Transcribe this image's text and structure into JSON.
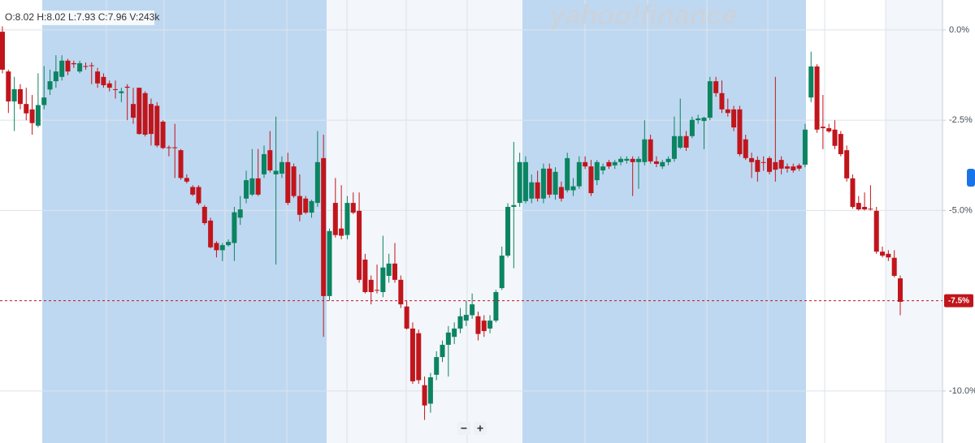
{
  "chart_data": {
    "type": "candlestick",
    "legend_text": "O:8.02  H:8.02  L:7.93  C:7.96  V:243k",
    "watermark": "yahoo!finance",
    "zoom_out": "−",
    "zoom_in": "+",
    "up_color": "#0b8461",
    "down_color": "#c1151c",
    "ylim": [
      -11.44,
      0.83
    ],
    "yticks": [
      {
        "value": 0,
        "label": "0.0%"
      },
      {
        "value": -2.5,
        "label": "-2.5%"
      },
      {
        "value": -5,
        "label": "-5.0%"
      },
      {
        "value": -10,
        "label": "-10.0%"
      }
    ],
    "price_label": {
      "value": -7.5,
      "label": "-7.5%"
    },
    "grid": true,
    "ohlc": [
      [
        -0.05,
        0.1,
        -1.2,
        -1.1
      ],
      [
        -1.15,
        -1.1,
        -2.3,
        -1.98
      ],
      [
        -1.98,
        -1.3,
        -2.8,
        -1.64
      ],
      [
        -1.64,
        -1.5,
        -2.2,
        -2.05
      ],
      [
        -2.05,
        -1.6,
        -2.5,
        -2.31
      ],
      [
        -2.2,
        -1.8,
        -2.9,
        -2.58
      ],
      [
        -2.65,
        -1.2,
        -2.7,
        -2.08
      ],
      [
        -2.08,
        -1.0,
        -2.2,
        -1.87
      ],
      [
        -1.65,
        -1.1,
        -1.8,
        -1.42
      ],
      [
        -1.42,
        -0.7,
        -1.6,
        -1.15
      ],
      [
        -1.3,
        -0.7,
        -1.4,
        -0.85
      ],
      [
        -0.85,
        -0.8,
        -1.25,
        -1.15
      ],
      [
        -0.92,
        -0.85,
        -1.05,
        -0.95
      ],
      [
        -1.15,
        -0.85,
        -1.2,
        -0.92
      ],
      [
        -1.0,
        -0.9,
        -1.1,
        -1.02
      ],
      [
        -0.98,
        -0.9,
        -1.5,
        -1.0
      ],
      [
        -1.15,
        -1.05,
        -1.6,
        -1.48
      ],
      [
        -1.3,
        -1.2,
        -1.6,
        -1.53
      ],
      [
        -1.48,
        -1.4,
        -1.7,
        -1.6
      ],
      [
        -1.64,
        -1.4,
        -1.9,
        -1.66
      ],
      [
        -1.75,
        -1.6,
        -2.0,
        -1.7
      ],
      [
        -1.57,
        -1.5,
        -2.5,
        -1.6
      ],
      [
        -2.05,
        -1.6,
        -2.6,
        -2.43
      ],
      [
        -1.6,
        -1.6,
        -2.9,
        -2.88
      ],
      [
        -1.75,
        -1.7,
        -2.95,
        -2.9
      ],
      [
        -2.05,
        -1.9,
        -3.2,
        -2.88
      ],
      [
        -2.1,
        -2.0,
        -3.25,
        -3.2
      ],
      [
        -2.54,
        -2.5,
        -3.3,
        -3.27
      ],
      [
        -3.25,
        -3.2,
        -3.5,
        -3.27
      ],
      [
        -3.25,
        -2.6,
        -4.1,
        -3.27
      ],
      [
        -3.33,
        -3.3,
        -4.15,
        -4.1
      ],
      [
        -4.1,
        -4.0,
        -4.25,
        -4.2
      ],
      [
        -4.35,
        -4.3,
        -4.6,
        -4.56
      ],
      [
        -4.35,
        -4.3,
        -4.85,
        -4.8
      ],
      [
        -4.9,
        -4.85,
        -5.4,
        -5.35
      ],
      [
        -5.28,
        -5.2,
        -6.05,
        -6.02
      ],
      [
        -5.9,
        -5.85,
        -6.3,
        -6.1
      ],
      [
        -6.1,
        -5.9,
        -6.4,
        -5.96
      ],
      [
        -5.96,
        -5.8,
        -6.0,
        -5.87
      ],
      [
        -5.9,
        -4.9,
        -6.4,
        -5.05
      ],
      [
        -5.2,
        -4.6,
        -5.4,
        -4.97
      ],
      [
        -4.67,
        -3.9,
        -4.8,
        -4.16
      ],
      [
        -4.56,
        -3.3,
        -4.6,
        -4.11
      ],
      [
        -4.11,
        -3.3,
        -4.6,
        -4.56
      ],
      [
        -4.0,
        -3.2,
        -4.1,
        -3.44
      ],
      [
        -3.33,
        -2.8,
        -3.95,
        -3.89
      ],
      [
        -4.0,
        -2.4,
        -6.5,
        -3.9
      ],
      [
        -3.98,
        -3.5,
        -4.1,
        -3.66
      ],
      [
        -3.66,
        -3.4,
        -4.85,
        -4.79
      ],
      [
        -3.78,
        -3.7,
        -4.65,
        -4.6
      ],
      [
        -4.6,
        -4.0,
        -5.3,
        -5.12
      ],
      [
        -4.67,
        -4.6,
        -5.1,
        -5.06
      ],
      [
        -5.06,
        -4.7,
        -5.2,
        -4.74
      ],
      [
        -4.79,
        -2.8,
        -4.9,
        -3.66
      ],
      [
        -3.55,
        -2.9,
        -8.5,
        -7.37
      ],
      [
        -7.37,
        -5.5,
        -7.5,
        -5.57
      ],
      [
        -4.79,
        -4.1,
        -5.75,
        -5.68
      ],
      [
        -5.5,
        -4.3,
        -5.8,
        -5.7
      ],
      [
        -5.68,
        -4.6,
        -5.8,
        -4.79
      ],
      [
        -4.79,
        -4.5,
        -5.1,
        -5.06
      ],
      [
        -5.01,
        -4.5,
        -7.0,
        -6.92
      ],
      [
        -6.36,
        -6.2,
        -7.3,
        -7.26
      ],
      [
        -6.92,
        -6.8,
        -7.6,
        -7.26
      ],
      [
        -7.2,
        -6.5,
        -7.3,
        -7.22
      ],
      [
        -7.26,
        -5.7,
        -7.4,
        -6.58
      ],
      [
        -6.81,
        -6.2,
        -7.0,
        -6.47
      ],
      [
        -6.47,
        -5.9,
        -7.0,
        -6.92
      ],
      [
        -6.92,
        -6.8,
        -7.7,
        -7.6
      ],
      [
        -7.66,
        -7.5,
        -8.3,
        -8.27
      ],
      [
        -8.27,
        -8.1,
        -9.8,
        -9.73
      ],
      [
        -8.4,
        -8.3,
        -9.8,
        -9.7
      ],
      [
        -9.84,
        -9.6,
        -10.8,
        -10.4
      ],
      [
        -10.35,
        -9.5,
        -10.6,
        -9.62
      ],
      [
        -9.55,
        -8.9,
        -9.7,
        -9.06
      ],
      [
        -9.06,
        -8.6,
        -9.2,
        -8.72
      ],
      [
        -8.72,
        -8.2,
        -9.6,
        -8.38
      ],
      [
        -8.5,
        -8.1,
        -8.7,
        -8.27
      ],
      [
        -8.27,
        -7.7,
        -8.4,
        -7.93
      ],
      [
        -8.05,
        -7.5,
        -8.2,
        -7.89
      ],
      [
        -7.9,
        -7.3,
        -8.0,
        -7.6
      ],
      [
        -7.93,
        -7.8,
        -8.6,
        -8.42
      ],
      [
        -8.05,
        -7.9,
        -8.5,
        -8.34
      ],
      [
        -8.27,
        -7.9,
        -8.4,
        -8.05
      ],
      [
        -8.05,
        -7.2,
        -8.1,
        -7.26
      ],
      [
        -7.15,
        -6.0,
        -7.2,
        -6.25
      ],
      [
        -6.25,
        -4.8,
        -6.3,
        -4.9
      ],
      [
        -4.9,
        -3.1,
        -6.6,
        -4.85
      ],
      [
        -4.79,
        -3.4,
        -4.9,
        -3.66
      ],
      [
        -4.74,
        -3.5,
        -4.8,
        -3.66
      ],
      [
        -4.67,
        -4.0,
        -4.8,
        -4.22
      ],
      [
        -4.22,
        -3.9,
        -4.75,
        -4.67
      ],
      [
        -4.67,
        -3.7,
        -4.8,
        -3.84
      ],
      [
        -3.84,
        -3.7,
        -4.65,
        -4.56
      ],
      [
        -4.56,
        -3.8,
        -4.7,
        -3.93
      ],
      [
        -4.35,
        -4.2,
        -4.75,
        -4.67
      ],
      [
        -4.44,
        -3.4,
        -4.5,
        -3.55
      ],
      [
        -4.44,
        -4.1,
        -4.6,
        -4.33
      ],
      [
        -4.33,
        -3.5,
        -4.4,
        -3.66
      ],
      [
        -3.66,
        -3.5,
        -3.85,
        -3.78
      ],
      [
        -3.78,
        -3.6,
        -4.6,
        -4.52
      ],
      [
        -4.16,
        -3.6,
        -4.3,
        -3.66
      ],
      [
        -3.89,
        -3.7,
        -4.0,
        -3.78
      ],
      [
        -3.66,
        -3.6,
        -3.85,
        -3.78
      ],
      [
        -3.75,
        -3.6,
        -3.85,
        -3.66
      ],
      [
        -3.66,
        -3.5,
        -3.75,
        -3.57
      ],
      [
        -3.62,
        -3.5,
        -3.7,
        -3.57
      ],
      [
        -3.57,
        -3.5,
        -4.6,
        -3.66
      ],
      [
        -3.66,
        -3.5,
        -4.4,
        -3.57
      ],
      [
        -3.66,
        -2.5,
        -3.75,
        -3.03
      ],
      [
        -3.03,
        -2.9,
        -3.7,
        -3.64
      ],
      [
        -3.64,
        -3.5,
        -3.8,
        -3.71
      ],
      [
        -3.78,
        -3.6,
        -3.85,
        -3.66
      ],
      [
        -3.66,
        -3.5,
        -3.75,
        -3.57
      ],
      [
        -3.57,
        -2.4,
        -3.65,
        -2.94
      ],
      [
        -3.26,
        -1.9,
        -3.3,
        -2.94
      ],
      [
        -2.94,
        -2.8,
        -3.35,
        -3.26
      ],
      [
        -2.94,
        -2.4,
        -3.0,
        -2.49
      ],
      [
        -2.5,
        -2.35,
        -2.6,
        -2.45
      ],
      [
        -2.52,
        -2.4,
        -3.3,
        -2.43
      ],
      [
        -2.43,
        -1.3,
        -2.5,
        -1.42
      ],
      [
        -1.42,
        -1.3,
        -1.85,
        -1.75
      ],
      [
        -1.75,
        -1.4,
        -2.3,
        -2.2
      ],
      [
        -2.2,
        -1.9,
        -2.4,
        -2.3
      ],
      [
        -2.2,
        -2.1,
        -2.8,
        -2.7
      ],
      [
        -2.2,
        -2.1,
        -3.5,
        -3.44
      ],
      [
        -3.03,
        -2.9,
        -3.6,
        -3.55
      ],
      [
        -3.55,
        -3.4,
        -4.1,
        -3.66
      ],
      [
        -3.6,
        -3.5,
        -4.2,
        -3.93
      ],
      [
        -3.66,
        -3.5,
        -3.9,
        -3.68
      ],
      [
        -3.55,
        -3.5,
        -4.0,
        -3.93
      ],
      [
        -3.66,
        -1.3,
        -4.2,
        -3.87
      ],
      [
        -3.6,
        -3.5,
        -4.0,
        -3.84
      ],
      [
        -3.78,
        -3.7,
        -3.95,
        -3.84
      ],
      [
        -3.78,
        -3.7,
        -3.95,
        -3.89
      ],
      [
        -3.75,
        -3.7,
        -3.9,
        -3.84
      ],
      [
        -3.73,
        -2.6,
        -3.8,
        -2.76
      ],
      [
        -1.87,
        -0.6,
        -2.0,
        -1.01
      ],
      [
        -1.01,
        -0.95,
        -2.85,
        -2.76
      ],
      [
        -2.68,
        -1.8,
        -3.3,
        -2.72
      ],
      [
        -2.72,
        -2.6,
        -2.85,
        -2.81
      ],
      [
        -2.76,
        -2.5,
        -3.3,
        -3.21
      ],
      [
        -2.88,
        -2.8,
        -3.5,
        -3.44
      ],
      [
        -3.33,
        -3.2,
        -4.2,
        -4.11
      ],
      [
        -4.11,
        -4.0,
        -4.95,
        -4.9
      ],
      [
        -4.79,
        -4.6,
        -5.0,
        -4.97
      ],
      [
        -4.9,
        -4.5,
        -5.0,
        -4.97
      ],
      [
        -4.95,
        -4.3,
        -5.0,
        -4.97
      ],
      [
        -5.01,
        -4.9,
        -6.2,
        -6.14
      ],
      [
        -6.14,
        -6.0,
        -6.3,
        -6.25
      ],
      [
        -6.2,
        -6.1,
        -6.4,
        -6.3
      ],
      [
        -6.31,
        -6.1,
        -6.85,
        -6.81
      ],
      [
        -6.88,
        -6.8,
        -7.9,
        -7.53
      ]
    ]
  }
}
